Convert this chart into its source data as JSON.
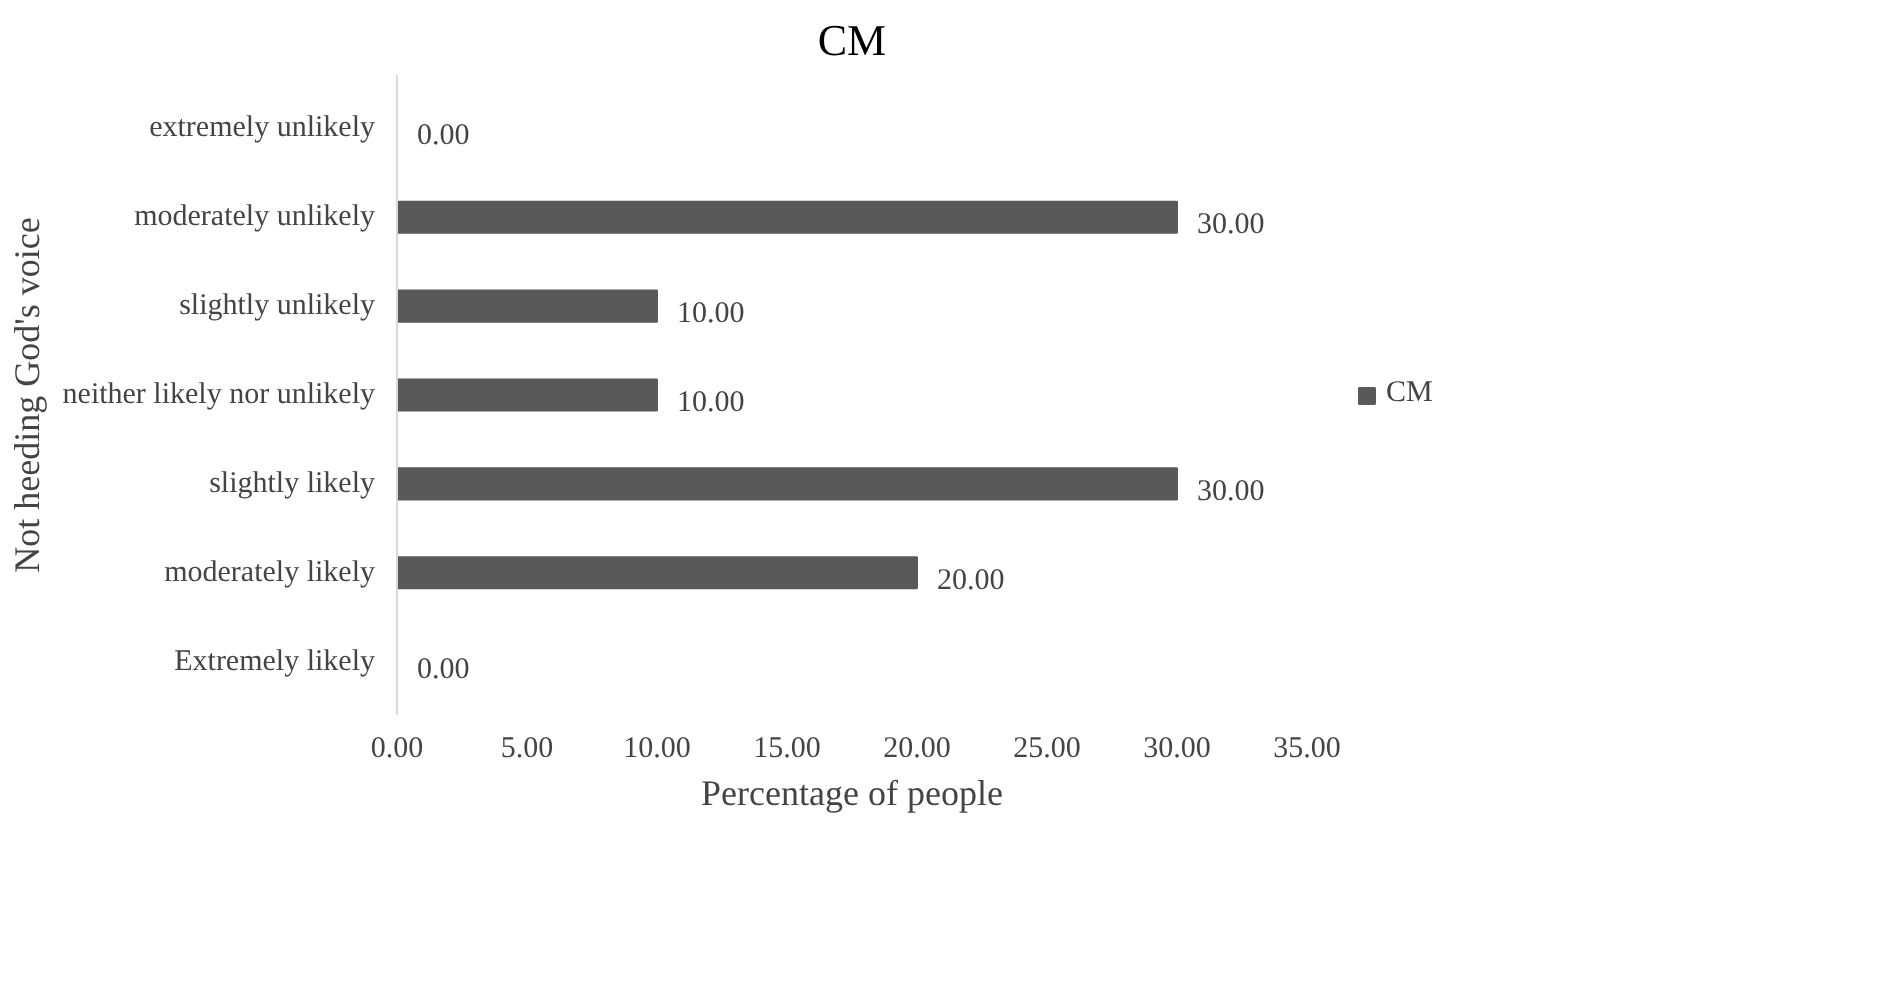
{
  "chart_data": {
    "type": "bar",
    "orientation": "horizontal",
    "title": "CM",
    "xlabel": "Percentage of people",
    "ylabel": "Not heeding God's voice",
    "categories": [
      "extremely unlikely",
      "moderately unlikely",
      "slightly unlikely",
      "neither likely nor unlikely",
      "slightly likely",
      "moderately likely",
      "Extremely likely"
    ],
    "series": [
      {
        "name": "CM",
        "color": "#595959",
        "values": [
          0,
          30,
          10,
          10,
          30,
          20,
          0
        ],
        "value_labels": [
          "0.00",
          "30.00",
          "10.00",
          "10.00",
          "30.00",
          "20.00",
          "0.00"
        ]
      }
    ],
    "xlim": [
      0,
      35
    ],
    "xticks": [
      {
        "value": 0,
        "label": "0.00"
      },
      {
        "value": 5,
        "label": "5.00"
      },
      {
        "value": 10,
        "label": "10.00"
      },
      {
        "value": 15,
        "label": "15.00"
      },
      {
        "value": 20,
        "label": "20.00"
      },
      {
        "value": 25,
        "label": "25.00"
      },
      {
        "value": 30,
        "label": "30.00"
      },
      {
        "value": 35,
        "label": "35.00"
      }
    ],
    "grid": false,
    "legend": "right"
  }
}
